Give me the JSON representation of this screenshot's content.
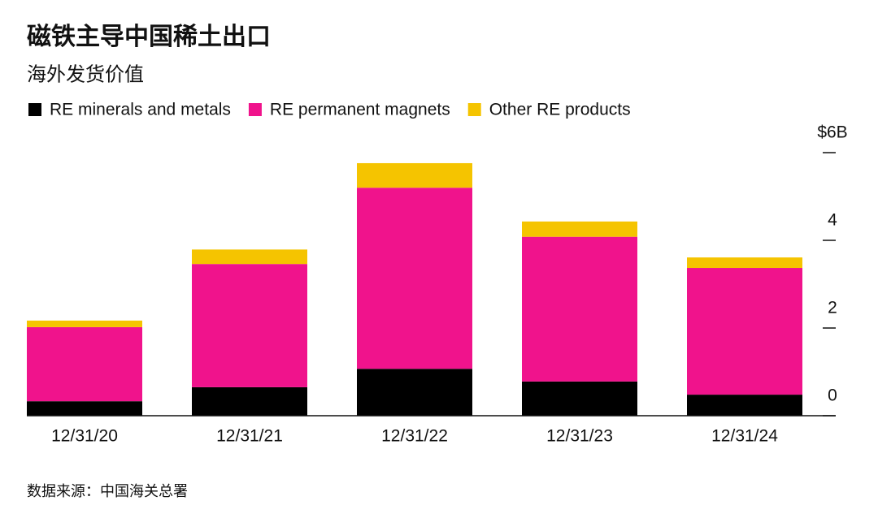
{
  "chart_data": {
    "type": "stacked_bar",
    "title": "磁铁主导中国稀土出口",
    "subtitle": "海外发货价值",
    "source": "数据来源：中国海关总署",
    "categories": [
      "12/31/20",
      "12/31/21",
      "12/31/22",
      "12/31/23",
      "12/31/24"
    ],
    "series": [
      {
        "name": "RE minerals and metals",
        "color": "#000000",
        "values": [
          0.33,
          0.65,
          1.07,
          0.78,
          0.48
        ]
      },
      {
        "name": "RE permanent magnets",
        "color": "#f0138c",
        "values": [
          1.69,
          2.81,
          4.13,
          3.3,
          2.89
        ]
      },
      {
        "name": "Other RE products",
        "color": "#f5c400",
        "values": [
          0.15,
          0.33,
          0.56,
          0.35,
          0.24
        ]
      }
    ],
    "ylim": [
      0,
      6
    ],
    "yticks": [
      0,
      2,
      4,
      {
        "value": 6,
        "label": "$6B"
      }
    ]
  }
}
